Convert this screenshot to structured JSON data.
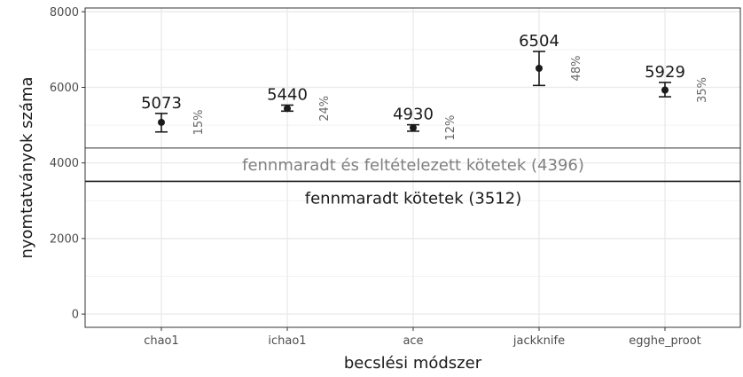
{
  "chart_data": {
    "type": "scatter",
    "xlabel": "becslési módszer",
    "ylabel": "nyomtatványok száma",
    "ylim": [
      -350,
      8100
    ],
    "yticks": [
      0,
      2000,
      4000,
      6000,
      8000
    ],
    "grid": true,
    "categories": [
      "chao1",
      "ichao1",
      "ace",
      "jackknife",
      "egghe_proot"
    ],
    "points": [
      {
        "category": "chao1",
        "value": 5073,
        "lower": 4820,
        "upper": 5310,
        "label": "5073",
        "pct": "15%"
      },
      {
        "category": "ichao1",
        "value": 5440,
        "lower": 5370,
        "upper": 5530,
        "label": "5440",
        "pct": "24%"
      },
      {
        "category": "ace",
        "value": 4930,
        "lower": 4840,
        "upper": 5010,
        "label": "4930",
        "pct": "12%"
      },
      {
        "category": "jackknife",
        "value": 6504,
        "lower": 6050,
        "upper": 6950,
        "label": "6504",
        "pct": "48%"
      },
      {
        "category": "egghe_proot",
        "value": 5929,
        "lower": 5750,
        "upper": 6130,
        "label": "5929",
        "pct": "35%"
      }
    ],
    "reference_lines": [
      {
        "value": 4396,
        "label": "fennmaradt és feltételezett kötetek (4396)",
        "color": "#808080"
      },
      {
        "value": 3512,
        "label": "fennmaradt kötetek (3512)",
        "color": "#1a1a1a"
      }
    ]
  }
}
